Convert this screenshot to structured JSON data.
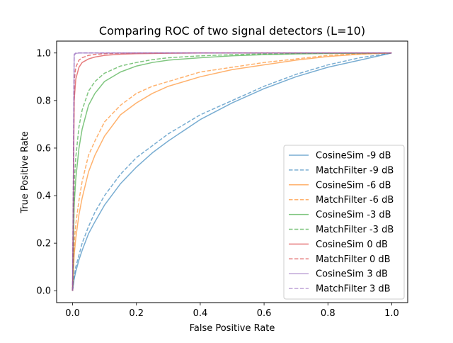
{
  "chart_data": {
    "type": "line",
    "title": "Comparing ROC of two signal detectors (L=10)",
    "xlabel": "False Positive Rate",
    "ylabel": "True Positive Rate",
    "xlim": [
      -0.05,
      1.05
    ],
    "ylim": [
      -0.05,
      1.05
    ],
    "xticks": [
      0.0,
      0.2,
      0.4,
      0.6,
      0.8,
      1.0
    ],
    "yticks": [
      0.0,
      0.2,
      0.4,
      0.6,
      0.8,
      1.0
    ],
    "xtick_labels": [
      "0.0",
      "0.2",
      "0.4",
      "0.6",
      "0.8",
      "1.0"
    ],
    "ytick_labels": [
      "0.0",
      "0.2",
      "0.4",
      "0.6",
      "0.8",
      "1.0"
    ],
    "grid": false,
    "legend_position": "lower-right",
    "x": [
      0,
      0.005,
      0.01,
      0.02,
      0.03,
      0.05,
      0.07,
      0.1,
      0.15,
      0.2,
      0.25,
      0.3,
      0.4,
      0.5,
      0.6,
      0.7,
      0.8,
      0.9,
      1.0
    ],
    "series": [
      {
        "name": "CosineSim -9 dB",
        "color": "#1f77b4",
        "dash": "solid",
        "values": [
          0,
          0.05,
          0.08,
          0.13,
          0.17,
          0.24,
          0.29,
          0.36,
          0.45,
          0.52,
          0.58,
          0.63,
          0.72,
          0.79,
          0.85,
          0.9,
          0.94,
          0.97,
          1.0
        ]
      },
      {
        "name": "MatchFilter -9 dB",
        "color": "#1f77b4",
        "dash": "dashed",
        "values": [
          0,
          0.06,
          0.1,
          0.15,
          0.2,
          0.27,
          0.33,
          0.4,
          0.49,
          0.56,
          0.61,
          0.66,
          0.74,
          0.8,
          0.86,
          0.91,
          0.95,
          0.98,
          1.0
        ]
      },
      {
        "name": "CosineSim -6 dB",
        "color": "#ff7f0e",
        "dash": "solid",
        "values": [
          0,
          0.15,
          0.22,
          0.32,
          0.39,
          0.5,
          0.57,
          0.65,
          0.74,
          0.79,
          0.83,
          0.86,
          0.9,
          0.93,
          0.95,
          0.97,
          0.985,
          0.995,
          1.0
        ]
      },
      {
        "name": "MatchFilter -6 dB",
        "color": "#ff7f0e",
        "dash": "dashed",
        "values": [
          0,
          0.2,
          0.28,
          0.38,
          0.46,
          0.57,
          0.63,
          0.71,
          0.78,
          0.83,
          0.86,
          0.88,
          0.92,
          0.94,
          0.96,
          0.975,
          0.99,
          0.997,
          1.0
        ]
      },
      {
        "name": "CosineSim -3 dB",
        "color": "#2ca02c",
        "dash": "solid",
        "values": [
          0,
          0.36,
          0.47,
          0.6,
          0.68,
          0.78,
          0.83,
          0.88,
          0.92,
          0.945,
          0.96,
          0.97,
          0.98,
          0.988,
          0.993,
          0.996,
          0.998,
          0.999,
          1.0
        ]
      },
      {
        "name": "MatchFilter -3 dB",
        "color": "#2ca02c",
        "dash": "dashed",
        "values": [
          0,
          0.45,
          0.56,
          0.69,
          0.76,
          0.84,
          0.88,
          0.915,
          0.945,
          0.96,
          0.972,
          0.98,
          0.988,
          0.993,
          0.996,
          0.998,
          0.999,
          1.0,
          1.0
        ]
      },
      {
        "name": "CosineSim 0 dB",
        "color": "#d62728",
        "dash": "solid",
        "values": [
          0,
          0.8,
          0.89,
          0.94,
          0.96,
          0.975,
          0.983,
          0.99,
          0.995,
          0.997,
          0.998,
          0.999,
          1.0,
          1.0,
          1.0,
          1.0,
          1.0,
          1.0,
          1.0
        ]
      },
      {
        "name": "MatchFilter 0 dB",
        "color": "#d62728",
        "dash": "dashed",
        "values": [
          0,
          0.88,
          0.94,
          0.97,
          0.98,
          0.99,
          0.994,
          0.997,
          0.999,
          1.0,
          1.0,
          1.0,
          1.0,
          1.0,
          1.0,
          1.0,
          1.0,
          1.0,
          1.0
        ]
      },
      {
        "name": "CosineSim 3 dB",
        "color": "#9467bd",
        "dash": "solid",
        "values": [
          0,
          0.99,
          0.998,
          1.0,
          1.0,
          1.0,
          1.0,
          1.0,
          1.0,
          1.0,
          1.0,
          1.0,
          1.0,
          1.0,
          1.0,
          1.0,
          1.0,
          1.0,
          1.0
        ]
      },
      {
        "name": "MatchFilter 3 dB",
        "color": "#9467bd",
        "dash": "dashed",
        "values": [
          0,
          0.995,
          1.0,
          1.0,
          1.0,
          1.0,
          1.0,
          1.0,
          1.0,
          1.0,
          1.0,
          1.0,
          1.0,
          1.0,
          1.0,
          1.0,
          1.0,
          1.0,
          1.0
        ]
      }
    ]
  }
}
